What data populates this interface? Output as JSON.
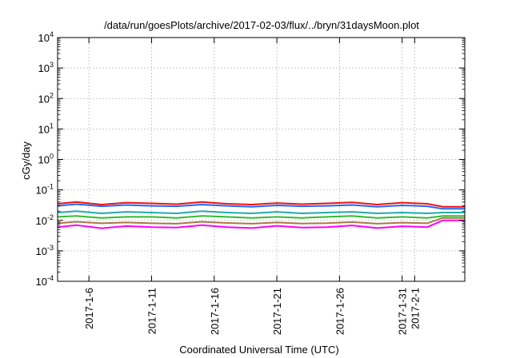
{
  "chart_data": {
    "type": "line",
    "title": "/data/run/goesPlots/archive/2017-02-03/flux/../bryn/31daysMoon.plot",
    "xlabel": "Coordinated Universal Time (UTC)",
    "ylabel": "cGy/day",
    "yscale": "log",
    "grid": true,
    "legend": "none",
    "xlim": [
      "2017-01-03T12:00",
      "2017-02-05T00:00"
    ],
    "ylim": [
      0.0001,
      10000
    ],
    "y_ticks": [
      {
        "base": "10",
        "exp": "-4"
      },
      {
        "base": "10",
        "exp": "-3"
      },
      {
        "base": "10",
        "exp": "-2"
      },
      {
        "base": "10",
        "exp": "-1"
      },
      {
        "base": "10",
        "exp": "0"
      },
      {
        "base": "10",
        "exp": "1"
      },
      {
        "base": "10",
        "exp": "2"
      },
      {
        "base": "10",
        "exp": "3"
      },
      {
        "base": "10",
        "exp": "4"
      }
    ],
    "x_ticks": [
      {
        "label": "2017-1-6",
        "date": "2017-01-06"
      },
      {
        "label": "2017-1-11",
        "date": "2017-01-11"
      },
      {
        "label": "2017-1-16",
        "date": "2017-01-16"
      },
      {
        "label": "2017-1-21",
        "date": "2017-01-21"
      },
      {
        "label": "2017-1-26",
        "date": "2017-01-26"
      },
      {
        "label": "2017-1-31",
        "date": "2017-01-31"
      },
      {
        "label": "2017-2-1",
        "date": "2017-02-01"
      }
    ],
    "series": [
      {
        "color": "#ee1111",
        "x": [
          "2017-01-03T12:00",
          "2017-01-05",
          "2017-01-07",
          "2017-01-09",
          "2017-01-11",
          "2017-01-13",
          "2017-01-15",
          "2017-01-17",
          "2017-01-19",
          "2017-01-21",
          "2017-01-23",
          "2017-01-25",
          "2017-01-27",
          "2017-01-29",
          "2017-01-31",
          "2017-02-02",
          "2017-02-03T06:00",
          "2017-02-05T00:00"
        ],
        "y": [
          0.035,
          0.04,
          0.033,
          0.038,
          0.036,
          0.034,
          0.04,
          0.035,
          0.033,
          0.037,
          0.034,
          0.036,
          0.039,
          0.033,
          0.038,
          0.035,
          0.028,
          0.028
        ]
      },
      {
        "color": "#2266ff",
        "x": [
          "2017-01-03T12:00",
          "2017-01-05",
          "2017-01-07",
          "2017-01-09",
          "2017-01-11",
          "2017-01-13",
          "2017-01-15",
          "2017-01-17",
          "2017-01-19",
          "2017-01-21",
          "2017-01-23",
          "2017-01-25",
          "2017-01-27",
          "2017-01-29",
          "2017-01-31",
          "2017-02-02",
          "2017-02-03T06:00",
          "2017-02-05T00:00"
        ],
        "y": [
          0.03,
          0.034,
          0.029,
          0.032,
          0.03,
          0.029,
          0.033,
          0.03,
          0.028,
          0.031,
          0.029,
          0.03,
          0.032,
          0.028,
          0.031,
          0.029,
          0.024,
          0.024
        ]
      },
      {
        "color": "#22aaaa",
        "x": [
          "2017-01-03T12:00",
          "2017-01-05",
          "2017-01-07",
          "2017-01-09",
          "2017-01-11",
          "2017-01-13",
          "2017-01-15",
          "2017-01-17",
          "2017-01-19",
          "2017-01-21",
          "2017-01-23",
          "2017-01-25",
          "2017-01-27",
          "2017-01-29",
          "2017-01-31",
          "2017-02-02",
          "2017-02-03T06:00",
          "2017-02-05T00:00"
        ],
        "y": [
          0.018,
          0.02,
          0.017,
          0.019,
          0.018,
          0.017,
          0.02,
          0.018,
          0.017,
          0.019,
          0.017,
          0.018,
          0.019,
          0.017,
          0.018,
          0.017,
          0.018,
          0.018
        ]
      },
      {
        "color": "#33bb33",
        "x": [
          "2017-01-03T12:00",
          "2017-01-05",
          "2017-01-07",
          "2017-01-09",
          "2017-01-11",
          "2017-01-13",
          "2017-01-15",
          "2017-01-17",
          "2017-01-19",
          "2017-01-21",
          "2017-01-23",
          "2017-01-25",
          "2017-01-27",
          "2017-01-29",
          "2017-01-31",
          "2017-02-02",
          "2017-02-03T06:00",
          "2017-02-05T00:00"
        ],
        "y": [
          0.013,
          0.014,
          0.012,
          0.013,
          0.013,
          0.012,
          0.014,
          0.013,
          0.012,
          0.013,
          0.012,
          0.013,
          0.014,
          0.012,
          0.013,
          0.012,
          0.014,
          0.014
        ]
      },
      {
        "color": "#aa7744",
        "x": [
          "2017-01-03T12:00",
          "2017-01-05",
          "2017-01-07",
          "2017-01-09",
          "2017-01-11",
          "2017-01-13",
          "2017-01-15",
          "2017-01-17",
          "2017-01-19",
          "2017-01-21",
          "2017-01-23",
          "2017-01-25",
          "2017-01-27",
          "2017-01-29",
          "2017-01-31",
          "2017-02-02",
          "2017-02-03T06:00",
          "2017-02-05T00:00"
        ],
        "y": [
          0.008,
          0.009,
          0.008,
          0.0085,
          0.008,
          0.0078,
          0.009,
          0.0082,
          0.0078,
          0.0085,
          0.0079,
          0.0081,
          0.0088,
          0.0078,
          0.0084,
          0.008,
          0.012,
          0.012
        ]
      },
      {
        "color": "#ff00ff",
        "x": [
          "2017-01-03T12:00",
          "2017-01-05",
          "2017-01-07",
          "2017-01-09",
          "2017-01-11",
          "2017-01-13",
          "2017-01-15",
          "2017-01-17",
          "2017-01-19",
          "2017-01-21",
          "2017-01-23",
          "2017-01-25",
          "2017-01-27",
          "2017-01-29",
          "2017-01-31",
          "2017-02-02",
          "2017-02-03T06:00",
          "2017-02-05T00:00"
        ],
        "y": [
          0.006,
          0.007,
          0.0055,
          0.0065,
          0.006,
          0.0058,
          0.007,
          0.006,
          0.0056,
          0.0066,
          0.0058,
          0.006,
          0.0068,
          0.0056,
          0.0064,
          0.006,
          0.01,
          0.01
        ]
      }
    ]
  }
}
